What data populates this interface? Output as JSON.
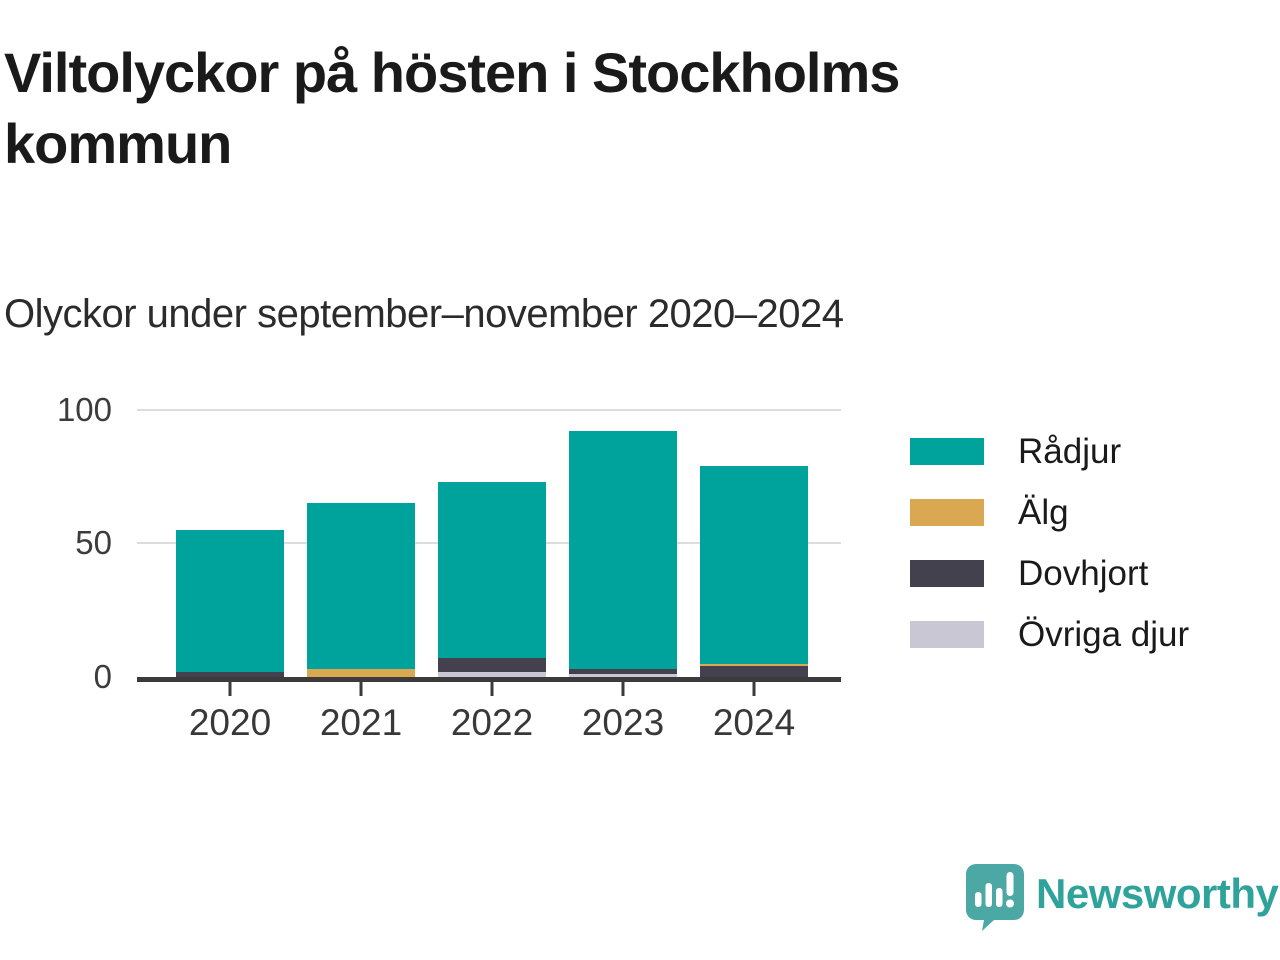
{
  "header": {
    "title": "Viltolyckor på hösten i Stockholms kommun",
    "subtitle": "Olyckor under september–november 2020–2024"
  },
  "chart_data": {
    "type": "bar",
    "stacked": true,
    "title": "Viltolyckor på hösten i Stockholms kommun",
    "subtitle": "Olyckor under september–november 2020–2024",
    "categories": [
      "2020",
      "2021",
      "2022",
      "2023",
      "2024"
    ],
    "series": [
      {
        "name": "Rådjur",
        "color": "#00a39b",
        "values": [
          53,
          62,
          66,
          89,
          74
        ]
      },
      {
        "name": "Älg",
        "color": "#d9a850",
        "values": [
          0,
          3,
          0,
          0,
          1
        ]
      },
      {
        "name": "Dovhjort",
        "color": "#44414f",
        "values": [
          2,
          0,
          5,
          2,
          4
        ]
      },
      {
        "name": "Övriga djur",
        "color": "#c9c7d3",
        "values": [
          0,
          0,
          2,
          1,
          0
        ]
      }
    ],
    "stack_order_bottom_to_top": [
      "Övriga djur",
      "Dovhjort",
      "Älg",
      "Rådjur"
    ],
    "totals": [
      55,
      65,
      73,
      92,
      79
    ],
    "xlabel": "",
    "ylabel": "",
    "ylim": [
      0,
      100
    ],
    "yticks": [
      0,
      50,
      100
    ],
    "grid": true,
    "legend_position": "right"
  },
  "colors": {
    "grid": "#dddddd",
    "axis": "#3b3b3b",
    "title_text": "#1a1a1a",
    "tick_text": "#3c3c3c"
  },
  "branding": {
    "wordmark": "Newsworthy",
    "logo_color": "#4ba8a4",
    "wordmark_color": "#2ea39b",
    "logo_glyph": "bar-chart-exclamation-speech-bubble"
  }
}
